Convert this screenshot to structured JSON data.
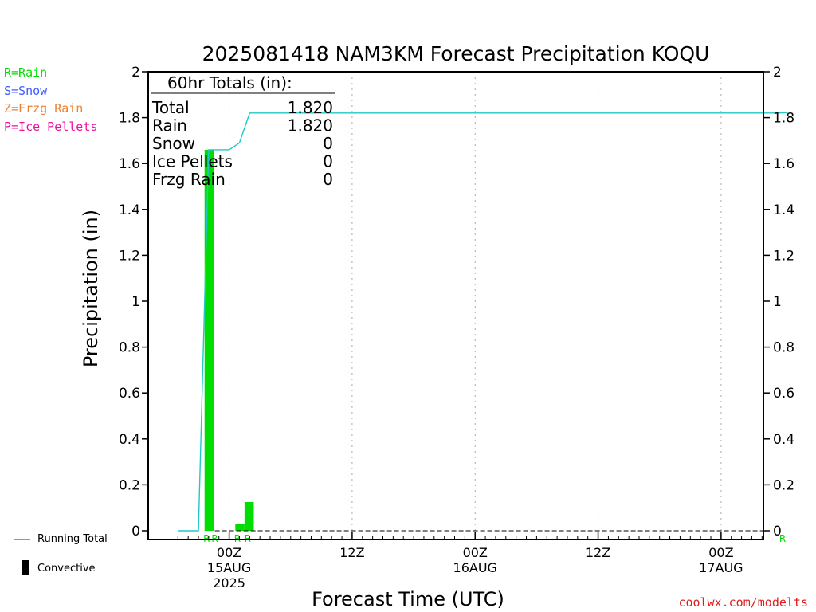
{
  "chart_data": {
    "type": "bar",
    "title": "2025081418 NAM3KM Forecast Precipitation KOQU",
    "ylabel": "Precipitation (in)",
    "xlabel": "Forecast Time (UTC)",
    "ylim": [
      0,
      2
    ],
    "yticks": [
      "0",
      "0.2",
      "0.4",
      "0.6",
      "0.8",
      "1",
      "1.2",
      "1.4",
      "1.6",
      "1.8",
      "2"
    ],
    "xlim_hours": [
      18,
      68
    ],
    "x_major_ticks": [
      {
        "hour": 24,
        "line1": "00Z",
        "line2": "15AUG",
        "line3": "2025"
      },
      {
        "hour": 36,
        "line1": "12Z",
        "line2": "",
        "line3": ""
      },
      {
        "hour": 48,
        "line1": "00Z",
        "line2": "16AUG",
        "line3": ""
      },
      {
        "hour": 60,
        "line1": "12Z",
        "line2": "",
        "line3": ""
      },
      {
        "hour": 72,
        "line1": "00Z",
        "line2": "17AUG",
        "line3": ""
      }
    ],
    "x_minor_ticks_hours": [
      19,
      20,
      21,
      22,
      23,
      25,
      26,
      27,
      28,
      29,
      30,
      31,
      32,
      33,
      34,
      35,
      37,
      38,
      39,
      40,
      41,
      42,
      43,
      44,
      45,
      46,
      47,
      49,
      50,
      51,
      52,
      53,
      54,
      55,
      56,
      57,
      58,
      59,
      61,
      62,
      63,
      64,
      65,
      66,
      67,
      68,
      69,
      70,
      71,
      73,
      74,
      75,
      76,
      77,
      78
    ],
    "precip_bars": [
      {
        "hour_start": 21.6,
        "hour_end": 22.5,
        "value": 1.66,
        "type": "rain"
      },
      {
        "hour_start": 24.6,
        "hour_end": 25.5,
        "value": 0.03,
        "type": "rain"
      },
      {
        "hour_start": 25.5,
        "hour_end": 26.4,
        "value": 0.125,
        "type": "rain"
      }
    ],
    "ptype_labels": [
      {
        "hour": 21.8,
        "text": "R"
      },
      {
        "hour": 22.6,
        "text": "R"
      },
      {
        "hour": 24.8,
        "text": "R"
      },
      {
        "hour": 25.8,
        "text": "R"
      },
      {
        "hour": 78.0,
        "text": "R"
      }
    ],
    "running_total": {
      "name": "Running Total",
      "points": [
        [
          19,
          0
        ],
        [
          21,
          0
        ],
        [
          22,
          1.66
        ],
        [
          23,
          1.66
        ],
        [
          24,
          1.66
        ],
        [
          25,
          1.69
        ],
        [
          26,
          1.82
        ],
        [
          30,
          1.82
        ],
        [
          40,
          1.82
        ],
        [
          50,
          1.82
        ],
        [
          60,
          1.82
        ],
        [
          70,
          1.82
        ],
        [
          77.5,
          1.82
        ],
        [
          78.5,
          1.822
        ]
      ]
    },
    "zero_line": true,
    "grid_vertical": true,
    "colors": {
      "rain": "#00dd00",
      "snow": "#3f5dff",
      "frzg_rain": "#f08030",
      "ice_pellets": "#ef10a0",
      "running_total": "#20c8c8",
      "convective": "#000000",
      "grid": "#aaaaaa",
      "credit": "#e11d1d"
    }
  },
  "totals_box": {
    "header": "60hr Totals (in):",
    "rows": [
      {
        "label": "Total",
        "value": "1.820"
      },
      {
        "label": "Rain",
        "value": "1.820"
      },
      {
        "label": "Snow",
        "value": "0"
      },
      {
        "label": "Ice Pellets",
        "value": "0"
      },
      {
        "label": "Frzg Rain",
        "value": "0"
      }
    ]
  },
  "ptype_legend": {
    "rain": "R=Rain",
    "snow": "S=Snow",
    "frzg_rain": "Z=Frzg Rain",
    "ice_pellets": "P=Ice Pellets"
  },
  "bottom_legend": {
    "running_total": "Running Total",
    "convective": "Convective"
  },
  "credit": "coolwx.com/modelts"
}
